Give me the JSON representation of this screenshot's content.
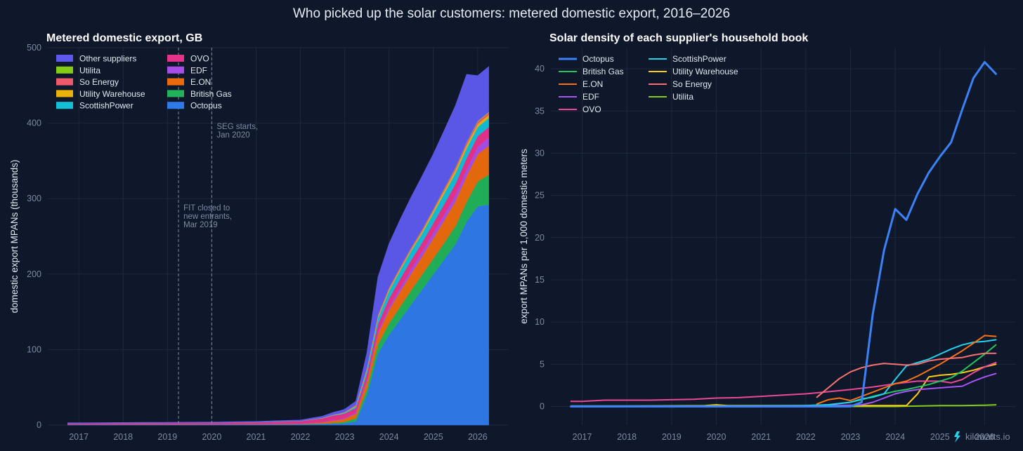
{
  "title": "Who picked up the solar customers: metered domestic export, 2016–2026",
  "watermark": "kilowatts.io",
  "colors": {
    "Octopus": "#2f7ae8",
    "British Gas": "#22b35a",
    "E.ON": "#ea6a0c",
    "EDF": "#a84ee8",
    "OVO": "#e6338a",
    "ScottishPower": "#14bfd8",
    "Utility Warehouse": "#eab20a",
    "So Energy": "#ef5a6b",
    "Utilita": "#84cc16",
    "Other suppliers": "#5d59ec",
    "Octopus_line": "#3b82f6",
    "British Gas_line": "#22c55e",
    "E.ON_line": "#f97316",
    "EDF_line": "#a855f7",
    "OVO_line": "#ec4899",
    "ScottishPower_line": "#22d3ee",
    "Utility Warehouse_line": "#facc15",
    "So Energy_line": "#f87171",
    "Utilita_line": "#84cc16"
  },
  "chart_data": [
    {
      "type": "area",
      "title": "Metered domestic export, GB",
      "xlabel": "",
      "ylabel": "domestic export MPANs (thousands)",
      "xlim": [
        2016.3,
        2026.7
      ],
      "ylim": [
        0,
        500
      ],
      "xticks": [
        "2017",
        "2018",
        "2019",
        "2020",
        "2021",
        "2022",
        "2023",
        "2024",
        "2025",
        "2026"
      ],
      "yticks": [
        "0",
        "100",
        "200",
        "300",
        "400",
        "500"
      ],
      "grid": true,
      "stacked": true,
      "legend_position": "top-left",
      "legend_order": [
        "Other suppliers",
        "OVO",
        "Utilita",
        "EDF",
        "So Energy",
        "E.ON",
        "Utility Warehouse",
        "British Gas",
        "ScottishPower",
        "Octopus"
      ],
      "x": [
        2016.75,
        2017.0,
        2017.5,
        2018.0,
        2018.5,
        2019.0,
        2019.5,
        2020.0,
        2020.5,
        2021.0,
        2021.5,
        2022.0,
        2022.5,
        2022.75,
        2022.9,
        2023.0,
        2023.25,
        2023.5,
        2023.75,
        2024.0,
        2024.25,
        2024.5,
        2024.75,
        2025.0,
        2025.25,
        2025.5,
        2025.75,
        2026.0,
        2026.25
      ],
      "series": [
        {
          "name": "Octopus",
          "values": [
            0.5,
            0.5,
            0.5,
            0.5,
            0.6,
            0.6,
            0.6,
            0.7,
            0.7,
            0.7,
            0.8,
            0.9,
            1.5,
            2,
            2,
            2.5,
            5,
            40,
            95,
            120,
            140,
            160,
            180,
            200,
            220,
            240,
            270,
            290,
            292
          ]
        },
        {
          "name": "British Gas",
          "values": [
            0.2,
            0.2,
            0.2,
            0.2,
            0.2,
            0.2,
            0.2,
            0.2,
            0.2,
            0.2,
            0.3,
            0.3,
            0.5,
            1,
            1.5,
            2,
            4,
            8,
            12,
            15,
            17,
            19,
            20,
            21,
            22,
            24,
            26,
            33,
            40
          ]
        },
        {
          "name": "E.ON",
          "values": [
            0.1,
            0.1,
            0.1,
            0.1,
            0.1,
            0.1,
            0.1,
            0.1,
            0.2,
            0.2,
            0.3,
            0.4,
            1.5,
            3,
            3.5,
            4,
            6,
            10,
            14,
            18,
            20,
            22,
            24,
            27,
            30,
            33,
            34,
            36,
            38
          ]
        },
        {
          "name": "EDF",
          "values": [
            0.2,
            0.2,
            0.2,
            0.2,
            0.2,
            0.2,
            0.2,
            0.2,
            0.2,
            0.2,
            0.3,
            0.3,
            0.5,
            0.8,
            1,
            1,
            1.5,
            2,
            3,
            4,
            5,
            6,
            6.5,
            7,
            7.5,
            8,
            9,
            10,
            11
          ]
        },
        {
          "name": "OVO",
          "values": [
            1.5,
            1.5,
            1.6,
            1.7,
            1.8,
            1.9,
            2,
            2,
            2.2,
            2.4,
            2.8,
            3.2,
            5,
            6,
            6,
            6,
            6,
            8,
            10,
            11,
            12,
            12,
            12,
            13,
            14,
            15,
            15,
            14,
            14
          ]
        },
        {
          "name": "ScottishPower",
          "values": [
            0.1,
            0.1,
            0.1,
            0.1,
            0.1,
            0.1,
            0.1,
            0.1,
            0.1,
            0.1,
            0.2,
            0.2,
            0.4,
            0.6,
            0.8,
            1,
            2,
            5,
            8,
            10,
            11,
            12,
            12,
            13,
            14,
            14,
            13,
            12,
            12
          ]
        },
        {
          "name": "Utility Warehouse",
          "values": [
            0,
            0,
            0,
            0,
            0,
            0,
            0,
            0,
            0.1,
            0.1,
            0.1,
            0.1,
            0.2,
            0.3,
            0.4,
            0.5,
            1,
            1.5,
            2,
            2,
            2,
            2,
            2.5,
            3,
            3.5,
            4,
            4,
            4,
            4
          ]
        },
        {
          "name": "So Energy",
          "values": [
            0,
            0,
            0,
            0,
            0,
            0,
            0,
            0,
            0,
            0,
            0.1,
            0.1,
            0.2,
            0.3,
            0.4,
            0.5,
            1,
            1.5,
            2,
            2,
            2,
            2,
            2,
            2,
            2.5,
            3,
            3,
            3,
            3
          ]
        },
        {
          "name": "Utilita",
          "values": [
            0,
            0,
            0,
            0,
            0,
            0,
            0,
            0,
            0,
            0,
            0,
            0,
            0,
            0,
            0,
            0,
            0.1,
            0.1,
            0.2,
            0.3,
            0.4,
            0.4,
            0.5,
            0.5,
            0.6,
            0.7,
            0.8,
            1,
            1
          ]
        },
        {
          "name": "Other suppliers",
          "values": [
            0.5,
            0.5,
            0.5,
            0.6,
            0.6,
            0.6,
            0.7,
            0.7,
            0.8,
            0.9,
            1,
            1.2,
            2,
            3,
            3.5,
            3.5,
            5,
            20,
            50,
            58,
            63,
            67,
            71,
            73,
            77,
            82,
            90,
            60,
            60
          ]
        }
      ],
      "annotations": [
        {
          "x": 2019.25,
          "lines": [
            "FIT closed to",
            "new entrants,",
            "Mar 2019"
          ]
        },
        {
          "x": 2020.0,
          "lines": [
            "SEG starts,",
            "Jan 2020"
          ]
        }
      ]
    },
    {
      "type": "line",
      "title": "Solar density of each supplier's household book",
      "xlabel": "",
      "ylabel": "export MPANs per 1,000 domestic meters",
      "xlim": [
        2016.3,
        2026.7
      ],
      "ylim": [
        -2.2,
        42.5
      ],
      "xticks": [
        "2017",
        "2018",
        "2019",
        "2020",
        "2021",
        "2022",
        "2023",
        "2024",
        "2025",
        "2026"
      ],
      "yticks": [
        "0",
        "5",
        "10",
        "15",
        "20",
        "25",
        "30",
        "35",
        "40"
      ],
      "grid": true,
      "legend_position": "top-left",
      "legend_order": [
        "Octopus",
        "British Gas",
        "E.ON",
        "EDF",
        "OVO",
        "ScottishPower",
        "Utility Warehouse",
        "So Energy",
        "Utilita"
      ],
      "series": [
        {
          "name": "Octopus",
          "x": [
            2016.75,
            2017,
            2018,
            2019,
            2020,
            2021,
            2022,
            2022.75,
            2023,
            2023.25,
            2023.5,
            2023.75,
            2024,
            2024.25,
            2024.5,
            2024.75,
            2025,
            2025.25,
            2025.5,
            2025.75,
            2026,
            2026.25
          ],
          "y": [
            0,
            0,
            0,
            0,
            0,
            0,
            0,
            0,
            0,
            0.5,
            11,
            18.5,
            23.4,
            22.1,
            25.2,
            27.7,
            29.6,
            31.3,
            35.2,
            38.9,
            40.8,
            39.4
          ]
        },
        {
          "name": "British Gas",
          "x": [
            2016.75,
            2017,
            2018,
            2019,
            2020,
            2021,
            2022,
            2022.5,
            2023,
            2023.25,
            2023.5,
            2023.75,
            2024,
            2024.25,
            2024.5,
            2024.75,
            2025,
            2025.25,
            2025.5,
            2025.75,
            2026,
            2026.25
          ],
          "y": [
            0.05,
            0.05,
            0.05,
            0.05,
            0.05,
            0.05,
            0.1,
            0.2,
            0.5,
            0.8,
            1.2,
            1.5,
            1.8,
            2,
            2.3,
            2.6,
            3,
            3.4,
            4.2,
            5.2,
            6.2,
            7.3
          ]
        },
        {
          "name": "E.ON",
          "x": [
            2022.25,
            2022.5,
            2022.75,
            2023,
            2023.25,
            2023.5,
            2023.75,
            2024,
            2024.25,
            2024.5,
            2024.75,
            2025,
            2025.25,
            2025.5,
            2025.75,
            2026,
            2026.25
          ],
          "y": [
            0.3,
            0.8,
            1,
            0.7,
            1.2,
            1.7,
            2.2,
            2.7,
            3,
            3.6,
            4.3,
            5,
            5.8,
            6.6,
            7.5,
            8.4,
            8.3
          ]
        },
        {
          "name": "EDF",
          "x": [
            2022.5,
            2023,
            2023.25,
            2023.5,
            2023.75,
            2024,
            2024.25,
            2024.5,
            2024.75,
            2025,
            2025.25,
            2025.5,
            2025.75,
            2026,
            2026.25
          ],
          "y": [
            0.1,
            0.15,
            0.2,
            0.5,
            1,
            1.5,
            1.8,
            2,
            2.1,
            2.2,
            2.3,
            2.4,
            3,
            3.5,
            3.9
          ]
        },
        {
          "name": "OVO",
          "x": [
            2016.75,
            2017,
            2017.5,
            2018,
            2018.5,
            2019,
            2019.5,
            2020,
            2020.5,
            2021,
            2021.5,
            2022,
            2022.5,
            2023,
            2023.5,
            2024,
            2024.5,
            2025,
            2025.25,
            2025.5,
            2025.75,
            2026,
            2026.25
          ],
          "y": [
            0.6,
            0.6,
            0.75,
            0.75,
            0.75,
            0.8,
            0.85,
            1,
            1.05,
            1.2,
            1.35,
            1.5,
            1.75,
            2,
            2.3,
            2.7,
            3,
            3,
            2.8,
            3.2,
            4,
            4.7,
            5.2
          ]
        },
        {
          "name": "ScottishPower",
          "x": [
            2016.75,
            2018,
            2020,
            2022,
            2022.5,
            2023,
            2023.25,
            2023.5,
            2023.75,
            2024,
            2024.25,
            2024.5,
            2024.75,
            2025,
            2025.25,
            2025.5,
            2025.75,
            2026,
            2026.25
          ],
          "y": [
            0.05,
            0.05,
            0.05,
            0.1,
            0.2,
            0.5,
            0.9,
            1.1,
            1.5,
            3.2,
            4.8,
            5.2,
            5.6,
            6.2,
            6.8,
            7.3,
            7.6,
            7.7,
            7.9
          ]
        },
        {
          "name": "Utility Warehouse",
          "x": [
            2016.75,
            2018,
            2019.75,
            2020,
            2020.25,
            2021,
            2022,
            2023,
            2024,
            2024.25,
            2024.5,
            2024.75,
            2025,
            2025.25,
            2025.5,
            2025.75,
            2026,
            2026.25
          ],
          "y": [
            0.05,
            0.05,
            0.1,
            0.2,
            0.1,
            0.1,
            0.1,
            0.1,
            0.1,
            0.1,
            1.5,
            3.5,
            3.7,
            3.8,
            4,
            4.3,
            4.7,
            5
          ]
        },
        {
          "name": "So Energy",
          "x": [
            2022.25,
            2022.5,
            2022.75,
            2023,
            2023.25,
            2023.5,
            2023.75,
            2024,
            2024.25,
            2024.5,
            2024.75,
            2025,
            2025.25,
            2025.5,
            2025.75,
            2026,
            2026.25
          ],
          "y": [
            1.1,
            2.2,
            3.3,
            4.1,
            4.6,
            4.9,
            5.1,
            5,
            4.9,
            5,
            5.4,
            5.6,
            5.7,
            5.8,
            6.1,
            6.3,
            6.3
          ]
        },
        {
          "name": "Utilita",
          "x": [
            2016.75,
            2018,
            2020,
            2022,
            2024,
            2024.5,
            2025,
            2025.5,
            2026,
            2026.25
          ],
          "y": [
            0,
            0,
            0,
            0,
            0,
            0.05,
            0.1,
            0.1,
            0.15,
            0.2
          ]
        }
      ]
    }
  ]
}
